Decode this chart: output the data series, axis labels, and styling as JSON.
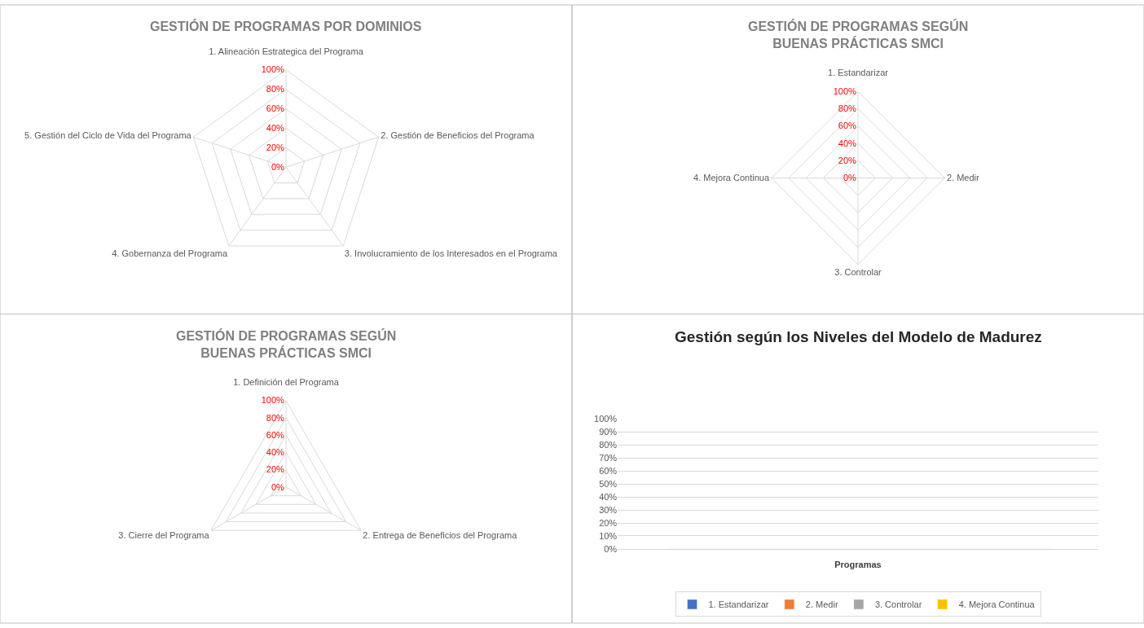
{
  "chart_data": [
    {
      "type": "radar",
      "title": "GESTIÓN DE PROGRAMAS POR DOMINIOS",
      "categories": [
        "1. Alineación Estrategica del Programa",
        "2. Gestión de Beneficios del Programa",
        "3. Involucramiento de los Interesados en el Programa",
        "4. Gobernanza del Programa",
        "5. Gestión del Ciclo de Vida del Programa"
      ],
      "series": [
        {
          "values": [
            null,
            null,
            null,
            null,
            null
          ]
        }
      ],
      "ylim": [
        0,
        100
      ],
      "yticks": [
        {
          "value": 0,
          "label": "0%"
        },
        {
          "value": 20,
          "label": "20%"
        },
        {
          "value": 40,
          "label": "40%"
        },
        {
          "value": 60,
          "label": "60%"
        },
        {
          "value": 80,
          "label": "80%"
        },
        {
          "value": 100,
          "label": "100%"
        }
      ],
      "grid": true,
      "legend": false
    },
    {
      "type": "radar",
      "title": "GESTIÓN DE PROGRAMAS SEGÚN\nBUENAS PRÁCTICAS SMCI",
      "categories": [
        "1. Estandarizar",
        "2. Medir",
        "3. Controlar",
        "4. Mejora Continua"
      ],
      "series": [
        {
          "values": [
            null,
            null,
            null,
            null
          ]
        }
      ],
      "ylim": [
        0,
        100
      ],
      "yticks": [
        {
          "value": 0,
          "label": "0%"
        },
        {
          "value": 20,
          "label": "20%"
        },
        {
          "value": 40,
          "label": "40%"
        },
        {
          "value": 60,
          "label": "60%"
        },
        {
          "value": 80,
          "label": "80%"
        },
        {
          "value": 100,
          "label": "100%"
        }
      ],
      "grid": true,
      "legend": false
    },
    {
      "type": "radar",
      "title": "GESTIÓN DE PROGRAMAS SEGÚN\nBUENAS PRÁCTICAS SMCI",
      "categories": [
        "1. Definición del Programa",
        "2. Entrega de Beneficios del Programa",
        "3. Cierre del Programa"
      ],
      "series": [
        {
          "values": [
            null,
            null,
            null
          ]
        }
      ],
      "ylim": [
        0,
        100
      ],
      "yticks": [
        {
          "value": 0,
          "label": "0%"
        },
        {
          "value": 20,
          "label": "20%"
        },
        {
          "value": 40,
          "label": "40%"
        },
        {
          "value": 60,
          "label": "60%"
        },
        {
          "value": 80,
          "label": "80%"
        },
        {
          "value": 100,
          "label": "100%"
        }
      ],
      "grid": true,
      "legend": false
    },
    {
      "type": "bar",
      "title": "Gestión según los Niveles del Modelo de Madurez",
      "xlabel": "Programas",
      "categories": [
        null
      ],
      "series": [
        {
          "name": "1. Estandarizar",
          "color": "#4472c4",
          "values": [
            0
          ]
        },
        {
          "name": "2. Medir",
          "color": "#ed7d31",
          "values": [
            0
          ]
        },
        {
          "name": "3. Controlar",
          "color": "#a5a5a5",
          "values": [
            0
          ]
        },
        {
          "name": "4. Mejora Continua",
          "color": "#ffc000",
          "values": [
            0
          ]
        }
      ],
      "ylim": [
        0,
        100
      ],
      "yticks": [
        {
          "value": 0,
          "label": "0%"
        },
        {
          "value": 10,
          "label": "10%"
        },
        {
          "value": 20,
          "label": "20%"
        },
        {
          "value": 30,
          "label": "30%"
        },
        {
          "value": 40,
          "label": "40%"
        },
        {
          "value": 50,
          "label": "50%"
        },
        {
          "value": 60,
          "label": "60%"
        },
        {
          "value": 70,
          "label": "70%"
        },
        {
          "value": 80,
          "label": "80%"
        },
        {
          "value": 90,
          "label": "90%"
        },
        {
          "value": 100,
          "label": "100%"
        }
      ],
      "grid": "y",
      "legend": "bottom",
      "tick_labels": "y"
    }
  ]
}
